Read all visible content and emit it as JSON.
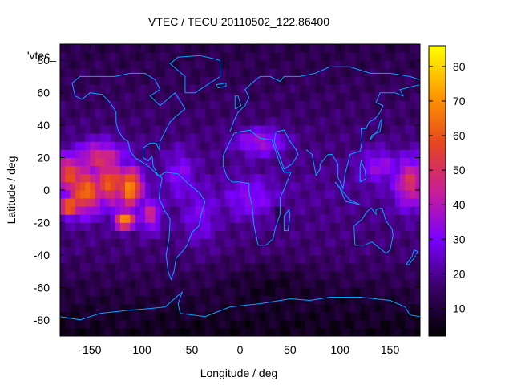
{
  "chart_data": {
    "type": "heatmap",
    "title": "VTEC / TECU 20110502_122.86400",
    "xlabel": "Longitude / deg",
    "ylabel": "Latitude / deg",
    "key_label": "'vtec_",
    "xlim": [
      -180,
      180
    ],
    "ylim": [
      -90,
      90
    ],
    "x_ticks": [
      -150,
      -100,
      -50,
      0,
      50,
      100,
      150
    ],
    "y_ticks": [
      -80,
      -60,
      -40,
      -20,
      0,
      20,
      40,
      60,
      80
    ],
    "colorbar": {
      "range": [
        2,
        86
      ],
      "ticks": [
        10,
        20,
        30,
        40,
        50,
        60,
        70,
        80
      ],
      "palette": [
        "#000000",
        "#3a0066",
        "#7a00ff",
        "#c81e96",
        "#e6461e",
        "#ff9b00",
        "#ffff00"
      ]
    },
    "grid": false,
    "cell_size_deg": [
      5,
      5
    ],
    "map_overlay": "coastlines",
    "features": [
      {
        "lon": -170,
        "lat": 10,
        "value": 58,
        "slon": 16,
        "slat": 12
      },
      {
        "lon": -155,
        "lat": 0,
        "value": 65,
        "slon": 18,
        "slat": 14
      },
      {
        "lon": -130,
        "lat": 5,
        "value": 60,
        "slon": 20,
        "slat": 14
      },
      {
        "lon": -110,
        "lat": 2,
        "value": 72,
        "slon": 12,
        "slat": 12
      },
      {
        "lon": -115,
        "lat": -18,
        "value": 72,
        "slon": 10,
        "slat": 6
      },
      {
        "lon": -170,
        "lat": -10,
        "value": 70,
        "slon": 10,
        "slat": 6
      },
      {
        "lon": -140,
        "lat": 20,
        "value": 50,
        "slon": 25,
        "slat": 10
      },
      {
        "lon": -90,
        "lat": -15,
        "value": 45,
        "slon": 10,
        "slat": 10
      },
      {
        "lon": 170,
        "lat": 5,
        "value": 50,
        "slon": 15,
        "slat": 15
      },
      {
        "lon": 140,
        "lat": 15,
        "value": 35,
        "slon": 20,
        "slat": 10
      },
      {
        "lon": 20,
        "lat": 30,
        "value": 38,
        "slon": 25,
        "slat": 8
      },
      {
        "lon": 10,
        "lat": -5,
        "value": 33,
        "slon": 25,
        "slat": 12
      },
      {
        "lon": -60,
        "lat": 10,
        "value": 32,
        "slon": 15,
        "slat": 15
      },
      {
        "lon": -40,
        "lat": -15,
        "value": 30,
        "slon": 18,
        "slat": 18
      },
      {
        "lon": 40,
        "lat": -15,
        "value": 4,
        "slon": 5,
        "slat": 4
      },
      {
        "lon": 30,
        "lat": -60,
        "value": 6,
        "slon": 45,
        "slat": 12
      },
      {
        "lon": 120,
        "lat": -70,
        "value": 8,
        "slon": 40,
        "slat": 10
      },
      {
        "lon": -120,
        "lat": -80,
        "value": 8,
        "slon": 40,
        "slat": 8
      },
      {
        "lon": 60,
        "lat": -85,
        "value": 6,
        "slon": 50,
        "slat": 8
      }
    ]
  }
}
